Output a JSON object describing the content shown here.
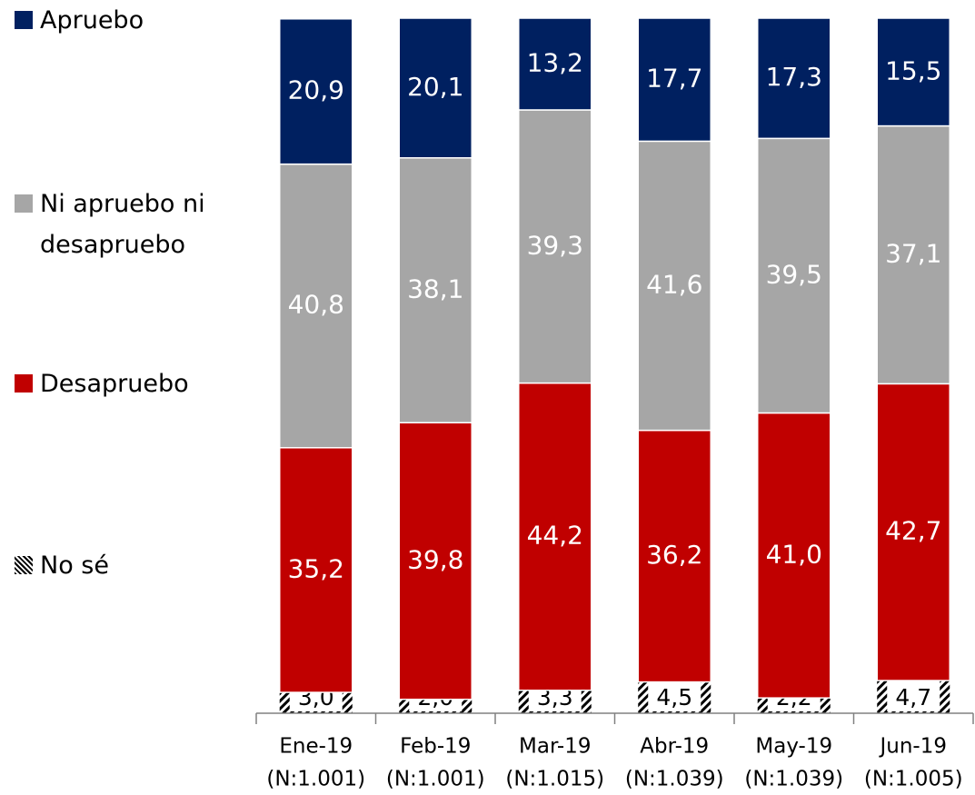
{
  "chart_data": {
    "type": "stacked-bar",
    "categories": [
      "Ene-19",
      "Feb-19",
      "Mar-19",
      "Abr-19",
      "May-19",
      "Jun-19"
    ],
    "category_notes": [
      "(N:1.001)",
      "(N:1.001)",
      "(N:1.015)",
      "(N:1.039)",
      "(N:1.039)",
      "(N:1.005)"
    ],
    "ylim": [
      0,
      100
    ],
    "series": [
      {
        "name": "No sé",
        "color": "#000000",
        "pattern": "hatch",
        "values": [
          3.0,
          2.0,
          3.3,
          4.5,
          2.2,
          4.7
        ],
        "value_labels": [
          "3,0",
          "2,0",
          "3,3",
          "4,5",
          "2,2",
          "4,7"
        ]
      },
      {
        "name": "Desapruebo",
        "color": "#c00000",
        "values": [
          35.2,
          39.8,
          44.2,
          36.2,
          41.0,
          42.7
        ],
        "value_labels": [
          "35,2",
          "39,8",
          "44,2",
          "36,2",
          "41,0",
          "42,7"
        ]
      },
      {
        "name": "Ni apruebo ni desapruebo",
        "color": "#a6a6a6",
        "values": [
          40.8,
          38.1,
          39.3,
          41.6,
          39.5,
          37.1
        ],
        "value_labels": [
          "40,8",
          "38,1",
          "39,3",
          "41,6",
          "39,5",
          "37,1"
        ]
      },
      {
        "name": "Apruebo",
        "color": "#002060",
        "values": [
          20.9,
          20.1,
          13.2,
          17.7,
          17.3,
          15.5
        ],
        "value_labels": [
          "20,9",
          "20,1",
          "13,2",
          "17,7",
          "17,3",
          "15,5"
        ]
      }
    ]
  }
}
